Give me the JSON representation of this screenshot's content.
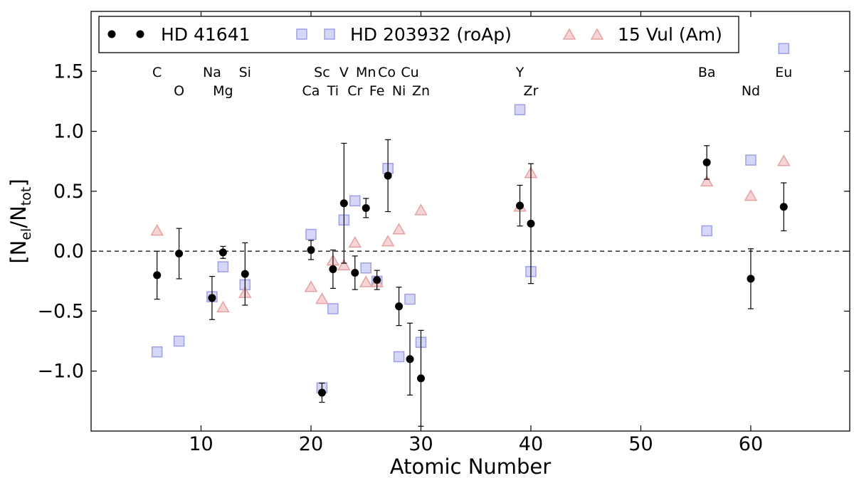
{
  "chart_data": {
    "type": "scatter",
    "xlabel": "Atomic Number",
    "ylabel_parts": {
      "open": "[N",
      "el": "el",
      "mid": "/N",
      "tot": "tot",
      "close": "]"
    },
    "xlim": [
      0,
      69
    ],
    "ylim": [
      -1.5,
      2.0
    ],
    "xticks": [
      10,
      20,
      30,
      40,
      50,
      60
    ],
    "yticks": [
      1.5,
      1.0,
      0.5,
      0.0,
      -0.5,
      -1.0
    ],
    "ytick_labels": [
      "1.5",
      "1.0",
      "0.5",
      "0.0",
      "−0.5",
      "−1.0"
    ],
    "reference_line_y": 0.0,
    "legend_position": "top-left",
    "element_labels": [
      {
        "text": "C",
        "z": 6,
        "row": "top"
      },
      {
        "text": "O",
        "z": 8,
        "row": "bottom"
      },
      {
        "text": "Na",
        "z": 11,
        "row": "top"
      },
      {
        "text": "Mg",
        "z": 12,
        "row": "bottom"
      },
      {
        "text": "Si",
        "z": 14,
        "row": "top"
      },
      {
        "text": "Sc",
        "z": 21,
        "row": "top"
      },
      {
        "text": "Ca",
        "z": 20,
        "row": "bottom"
      },
      {
        "text": "V",
        "z": 23,
        "row": "top"
      },
      {
        "text": "Ti",
        "z": 22,
        "row": "bottom"
      },
      {
        "text": "Mn",
        "z": 25,
        "row": "top"
      },
      {
        "text": "Cr",
        "z": 24,
        "row": "bottom"
      },
      {
        "text": "Co",
        "z": 26.9,
        "row": "top"
      },
      {
        "text": "Fe",
        "z": 26,
        "row": "bottom"
      },
      {
        "text": "Cu",
        "z": 29,
        "row": "top"
      },
      {
        "text": "Ni",
        "z": 28,
        "row": "bottom"
      },
      {
        "text": "Zn",
        "z": 30,
        "row": "bottom"
      },
      {
        "text": "Y",
        "z": 39,
        "row": "top"
      },
      {
        "text": "Zr",
        "z": 40,
        "row": "bottom"
      },
      {
        "text": "Ba",
        "z": 56,
        "row": "top"
      },
      {
        "text": "Nd",
        "z": 60,
        "row": "bottom"
      },
      {
        "text": "Eu",
        "z": 63,
        "row": "top"
      }
    ],
    "series": [
      {
        "name": "HD 41641",
        "marker": "circle",
        "color": "#000000",
        "points": [
          {
            "x": 6,
            "y": -0.2,
            "err": 0.2
          },
          {
            "x": 8,
            "y": -0.02,
            "err": 0.21
          },
          {
            "x": 11,
            "y": -0.39,
            "err": 0.18
          },
          {
            "x": 12,
            "y": -0.01,
            "err": 0.05
          },
          {
            "x": 14,
            "y": -0.19,
            "err": 0.26
          },
          {
            "x": 20,
            "y": 0.01,
            "err": 0.08
          },
          {
            "x": 21,
            "y": -1.18,
            "err": 0.08
          },
          {
            "x": 22,
            "y": -0.15,
            "err": 0.16
          },
          {
            "x": 23,
            "y": 0.4,
            "err": 0.5
          },
          {
            "x": 24,
            "y": -0.18,
            "err": 0.14
          },
          {
            "x": 25,
            "y": 0.36,
            "err": 0.08
          },
          {
            "x": 26,
            "y": -0.24,
            "err": 0.08
          },
          {
            "x": 27,
            "y": 0.63,
            "err": 0.3
          },
          {
            "x": 28,
            "y": -0.46,
            "err": 0.16
          },
          {
            "x": 29,
            "y": -0.9,
            "err": 0.3
          },
          {
            "x": 30,
            "y": -1.06,
            "err": 0.4
          },
          {
            "x": 39,
            "y": 0.38,
            "err": 0.17
          },
          {
            "x": 40,
            "y": 0.23,
            "err": 0.5
          },
          {
            "x": 56,
            "y": 0.74,
            "err": 0.14
          },
          {
            "x": 60,
            "y": -0.23,
            "err": 0.25
          },
          {
            "x": 63,
            "y": 0.37,
            "err": 0.2
          }
        ]
      },
      {
        "name": "HD 203932 (roAp)",
        "marker": "square",
        "color": "#9999ee",
        "points": [
          {
            "x": 6,
            "y": -0.84
          },
          {
            "x": 8,
            "y": -0.75
          },
          {
            "x": 11,
            "y": -0.38
          },
          {
            "x": 12,
            "y": -0.13
          },
          {
            "x": 14,
            "y": -0.28
          },
          {
            "x": 20,
            "y": 0.14
          },
          {
            "x": 21,
            "y": -1.14
          },
          {
            "x": 22,
            "y": -0.48
          },
          {
            "x": 23,
            "y": 0.26
          },
          {
            "x": 24,
            "y": 0.42
          },
          {
            "x": 25,
            "y": -0.14
          },
          {
            "x": 26,
            "y": -0.25
          },
          {
            "x": 27,
            "y": 0.69
          },
          {
            "x": 28,
            "y": -0.88
          },
          {
            "x": 29,
            "y": -0.4
          },
          {
            "x": 30,
            "y": -0.76
          },
          {
            "x": 39,
            "y": 1.18
          },
          {
            "x": 40,
            "y": -0.17
          },
          {
            "x": 56,
            "y": 0.17
          },
          {
            "x": 60,
            "y": 0.76
          },
          {
            "x": 63,
            "y": 1.69
          }
        ]
      },
      {
        "name": "15 Vul (Am)",
        "marker": "triangle",
        "color": "#e8a0a0",
        "points": [
          {
            "x": 6,
            "y": 0.17
          },
          {
            "x": 12,
            "y": -0.47
          },
          {
            "x": 14,
            "y": -0.35
          },
          {
            "x": 20,
            "y": -0.3
          },
          {
            "x": 21,
            "y": -0.4
          },
          {
            "x": 22,
            "y": -0.08
          },
          {
            "x": 23,
            "y": -0.12
          },
          {
            "x": 24,
            "y": 0.07
          },
          {
            "x": 25,
            "y": -0.26
          },
          {
            "x": 26,
            "y": -0.26
          },
          {
            "x": 27,
            "y": 0.08
          },
          {
            "x": 28,
            "y": 0.18
          },
          {
            "x": 30,
            "y": 0.34
          },
          {
            "x": 39,
            "y": 0.37
          },
          {
            "x": 40,
            "y": 0.65
          },
          {
            "x": 56,
            "y": 0.58
          },
          {
            "x": 60,
            "y": 0.46
          },
          {
            "x": 63,
            "y": 0.75
          }
        ]
      }
    ]
  }
}
